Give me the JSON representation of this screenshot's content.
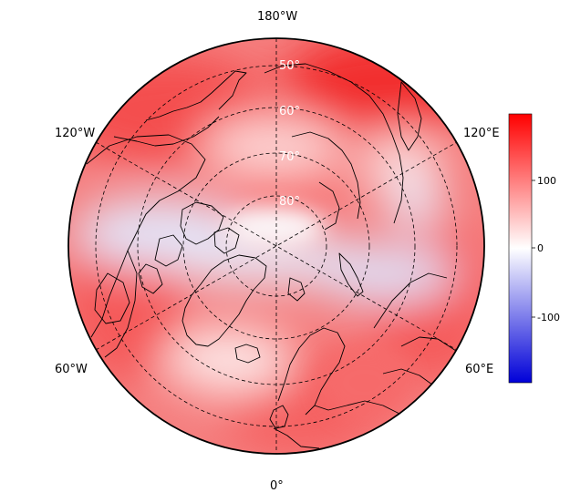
{
  "map": {
    "projection": "north-polar-stereographic",
    "variable_field": "diverging anomaly field (red positive, blue negative)",
    "graticule": {
      "longitude_labels": {
        "top": "180°W",
        "upper_left": "120°W",
        "upper_right": "120°E",
        "lower_left": "60°W",
        "lower_right": "60°E",
        "bottom": "0°"
      },
      "latitude_labels": [
        "50°",
        "60°",
        "70°",
        "80°"
      ]
    },
    "colorbar": {
      "colormap": "blue-white-red",
      "min_color": "#0000d8",
      "mid_color": "#ffffff",
      "max_color": "#ff0000",
      "range": [
        -190,
        190
      ],
      "ticks": [
        "100",
        "0",
        "-100"
      ],
      "tick_values": [
        100,
        0,
        -100
      ]
    },
    "colors": {
      "strong_positive": "#f53a3a",
      "moderate_positive": "#fa8c8c",
      "weak_positive": "#fde0e0",
      "neutral": "#fbfbfd",
      "negative": "#dcdcf5",
      "coastline": "#000000"
    }
  }
}
